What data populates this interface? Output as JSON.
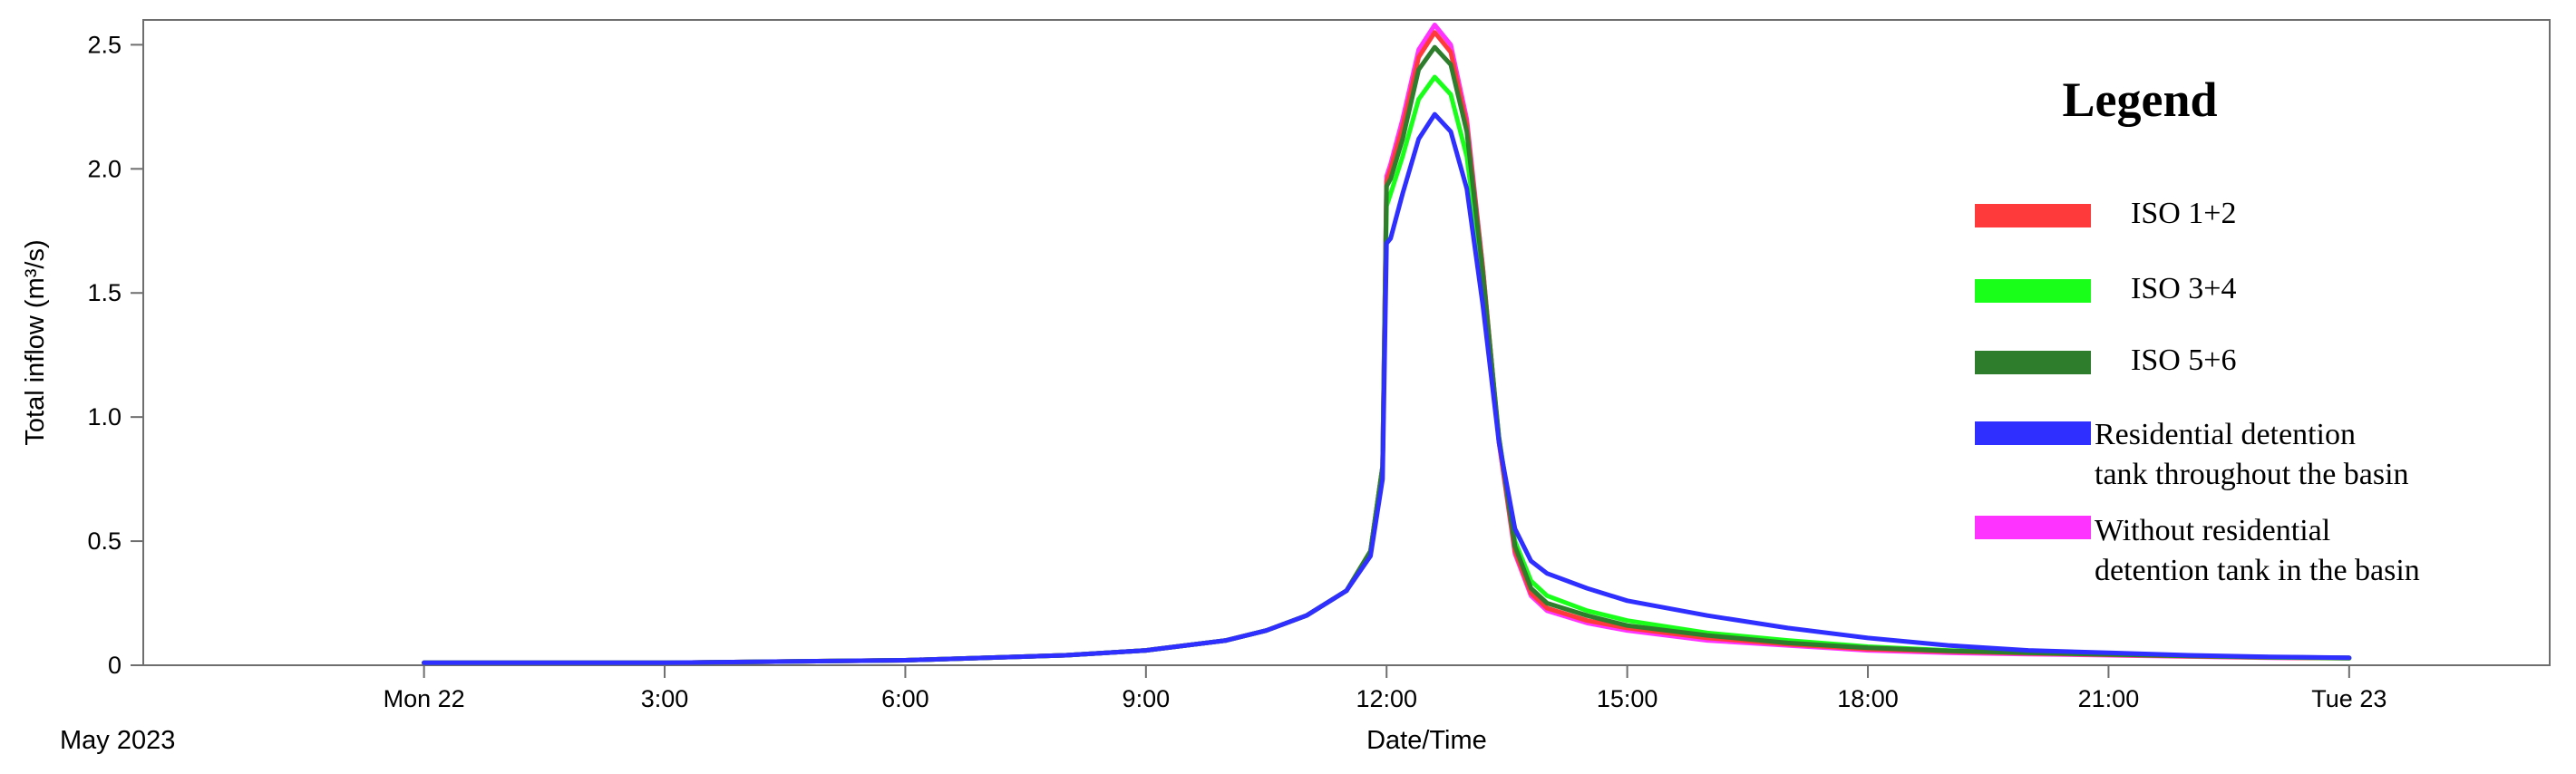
{
  "chart_data": {
    "type": "line",
    "title": "",
    "xlabel": "Date/Time",
    "ylabel": "Total inflow (m³/s)",
    "x_sublabel": "May 2023",
    "x_unit": "hours",
    "xlim": [
      -3.5,
      26.5
    ],
    "ylim": [
      0,
      2.6
    ],
    "x_ticks": [
      {
        "value": 0,
        "label": "Mon 22"
      },
      {
        "value": 3,
        "label": "3:00"
      },
      {
        "value": 6,
        "label": "6:00"
      },
      {
        "value": 9,
        "label": "9:00"
      },
      {
        "value": 12,
        "label": "12:00"
      },
      {
        "value": 15,
        "label": "15:00"
      },
      {
        "value": 18,
        "label": "18:00"
      },
      {
        "value": 21,
        "label": "21:00"
      },
      {
        "value": 24,
        "label": "Tue 23"
      }
    ],
    "y_ticks": [
      {
        "value": 0,
        "label": "0"
      },
      {
        "value": 0.5,
        "label": "0.5"
      },
      {
        "value": 1.0,
        "label": "1.0"
      },
      {
        "value": 1.5,
        "label": "1.5"
      },
      {
        "value": 2.0,
        "label": "2.0"
      },
      {
        "value": 2.5,
        "label": "2.5"
      }
    ],
    "grid": false,
    "legend": {
      "title": "Legend",
      "position": "right"
    },
    "series": [
      {
        "name": "Without residential detention tank in the basin",
        "legend_lines": [
          "Without residential",
          "detention tank in the basin"
        ],
        "color": "#ff33ff",
        "x": [
          0,
          3,
          6,
          8,
          9,
          10,
          10.5,
          11,
          11.5,
          11.8,
          11.95,
          12.0,
          12.05,
          12.2,
          12.4,
          12.6,
          12.8,
          13.0,
          13.2,
          13.4,
          13.6,
          13.8,
          14.0,
          14.5,
          15,
          16,
          17,
          18,
          19,
          20,
          21,
          22,
          23,
          24
        ],
        "y": [
          0.01,
          0.01,
          0.02,
          0.04,
          0.06,
          0.1,
          0.14,
          0.2,
          0.3,
          0.46,
          0.8,
          1.97,
          2.02,
          2.2,
          2.48,
          2.58,
          2.5,
          2.2,
          1.6,
          0.9,
          0.45,
          0.28,
          0.22,
          0.17,
          0.14,
          0.1,
          0.08,
          0.06,
          0.05,
          0.045,
          0.04,
          0.035,
          0.03,
          0.028
        ]
      },
      {
        "name": "ISO 1+2",
        "legend_lines": [
          "ISO 1+2"
        ],
        "color": "#ff3a3a",
        "x": [
          0,
          3,
          6,
          8,
          9,
          10,
          10.5,
          11,
          11.5,
          11.8,
          11.95,
          12.0,
          12.05,
          12.2,
          12.4,
          12.6,
          12.8,
          13.0,
          13.2,
          13.4,
          13.6,
          13.8,
          14.0,
          14.5,
          15,
          16,
          17,
          18,
          19,
          20,
          21,
          22,
          23,
          24
        ],
        "y": [
          0.01,
          0.01,
          0.02,
          0.04,
          0.06,
          0.1,
          0.14,
          0.2,
          0.3,
          0.46,
          0.8,
          1.95,
          2.0,
          2.17,
          2.45,
          2.55,
          2.47,
          2.18,
          1.6,
          0.9,
          0.46,
          0.29,
          0.23,
          0.18,
          0.15,
          0.11,
          0.085,
          0.065,
          0.055,
          0.048,
          0.042,
          0.036,
          0.031,
          0.028
        ]
      },
      {
        "name": "ISO 3+4",
        "legend_lines": [
          "ISO 3+4"
        ],
        "color": "#1aff1a",
        "x": [
          0,
          3,
          6,
          8,
          9,
          10,
          10.5,
          11,
          11.5,
          11.8,
          11.95,
          12.0,
          12.05,
          12.2,
          12.4,
          12.6,
          12.8,
          13.0,
          13.2,
          13.4,
          13.6,
          13.8,
          14.0,
          14.5,
          15,
          16,
          17,
          18,
          19,
          20,
          21,
          22,
          23,
          24
        ],
        "y": [
          0.01,
          0.01,
          0.02,
          0.04,
          0.06,
          0.1,
          0.14,
          0.2,
          0.3,
          0.46,
          0.8,
          1.85,
          1.9,
          2.05,
          2.28,
          2.37,
          2.3,
          2.05,
          1.55,
          0.92,
          0.5,
          0.34,
          0.28,
          0.22,
          0.18,
          0.13,
          0.1,
          0.075,
          0.06,
          0.05,
          0.044,
          0.038,
          0.032,
          0.028
        ]
      },
      {
        "name": "ISO 5+6",
        "legend_lines": [
          "ISO 5+6"
        ],
        "color": "#2d7d2d",
        "x": [
          0,
          3,
          6,
          8,
          9,
          10,
          10.5,
          11,
          11.5,
          11.8,
          11.95,
          12.0,
          12.05,
          12.2,
          12.4,
          12.6,
          12.8,
          13.0,
          13.2,
          13.4,
          13.6,
          13.8,
          14.0,
          14.5,
          15,
          16,
          17,
          18,
          19,
          20,
          21,
          22,
          23,
          24
        ],
        "y": [
          0.01,
          0.01,
          0.02,
          0.04,
          0.06,
          0.1,
          0.14,
          0.2,
          0.3,
          0.46,
          0.8,
          1.93,
          1.96,
          2.12,
          2.4,
          2.49,
          2.42,
          2.15,
          1.58,
          0.92,
          0.48,
          0.31,
          0.25,
          0.2,
          0.16,
          0.12,
          0.09,
          0.07,
          0.058,
          0.05,
          0.044,
          0.038,
          0.033,
          0.03
        ]
      },
      {
        "name": "Residential detention tank throughout the basin",
        "legend_lines": [
          "Residential detention",
          "tank throughout the basin"
        ],
        "color": "#2f2fff",
        "x": [
          0,
          3,
          6,
          8,
          9,
          10,
          10.5,
          11,
          11.5,
          11.8,
          11.95,
          12.0,
          12.05,
          12.2,
          12.4,
          12.6,
          12.8,
          13.0,
          13.2,
          13.4,
          13.6,
          13.8,
          14.0,
          14.5,
          15,
          16,
          17,
          18,
          19,
          20,
          21,
          22,
          23,
          24
        ],
        "y": [
          0.01,
          0.01,
          0.02,
          0.04,
          0.06,
          0.1,
          0.14,
          0.2,
          0.3,
          0.44,
          0.75,
          1.7,
          1.72,
          1.9,
          2.12,
          2.22,
          2.15,
          1.92,
          1.45,
          0.9,
          0.55,
          0.42,
          0.37,
          0.31,
          0.26,
          0.2,
          0.15,
          0.11,
          0.08,
          0.06,
          0.05,
          0.04,
          0.034,
          0.03
        ]
      }
    ],
    "legend_order": [
      1,
      2,
      3,
      4,
      0
    ]
  }
}
